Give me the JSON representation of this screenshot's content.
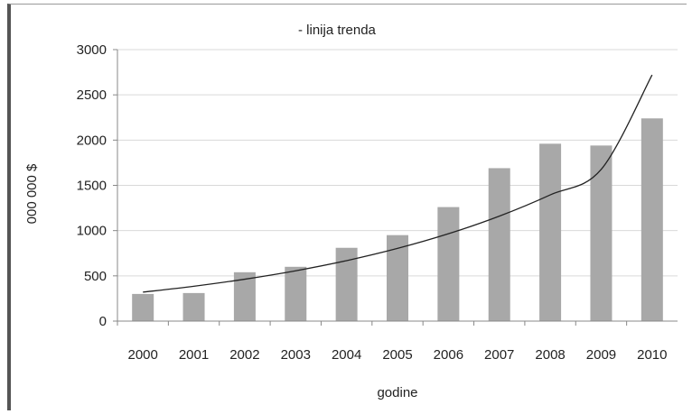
{
  "chart_data": {
    "type": "bar",
    "categories": [
      "2000",
      "2001",
      "2002",
      "2003",
      "2004",
      "2005",
      "2006",
      "2007",
      "2008",
      "2009",
      "2010"
    ],
    "values": [
      300,
      310,
      540,
      600,
      810,
      950,
      1260,
      1690,
      1960,
      1940,
      2240
    ],
    "trendline": {
      "label": "- linija trenda",
      "type": "exponential",
      "values": [
        320,
        385,
        463,
        556,
        668,
        803,
        965,
        1160,
        1395,
        1676,
        2720
      ]
    },
    "xlabel": "godine",
    "ylabel": "000 000 $",
    "ylim": [
      0,
      3000
    ],
    "yticks": [
      "0",
      "500",
      "1000",
      "1500",
      "2000",
      "2500",
      "3000"
    ],
    "grid": true,
    "colors": {
      "bar": "#a8a8a8",
      "trend": "#222222",
      "grid": "#d9d9d9"
    }
  }
}
